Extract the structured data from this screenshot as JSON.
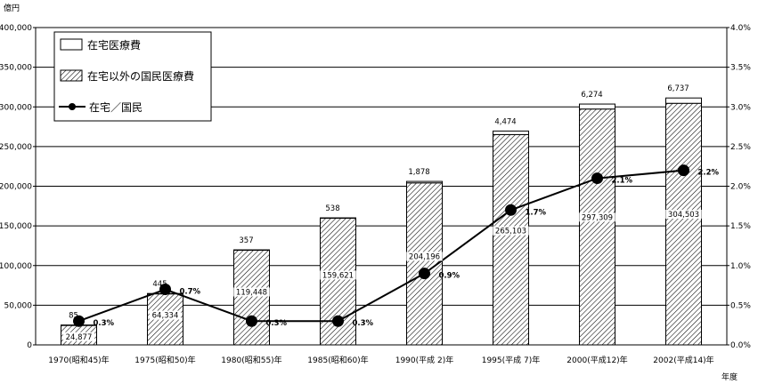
{
  "chart_data": {
    "type": "bar",
    "categories": [
      "1970(昭和45)年",
      "1975(昭和50)年",
      "1980(昭和55)年",
      "1985(昭和60)年",
      "1990(平成 2)年",
      "1995(平成 7)年",
      "2000(平成12)年",
      "2002(平成14)年"
    ],
    "series": [
      {
        "name": "在宅以外の国民医療費",
        "axis": "left",
        "kind": "stacked-bar-base",
        "pattern": "diagonal-hatch",
        "values": [
          24877,
          64334,
          119448,
          159621,
          204196,
          265103,
          297309,
          304503
        ],
        "labels": [
          "24,877",
          "64,334",
          "119,448",
          "159,621",
          "204,196",
          "265,103",
          "297,309",
          "304,503"
        ]
      },
      {
        "name": "在宅医療費",
        "axis": "left",
        "kind": "stacked-bar-top",
        "pattern": "white",
        "values": [
          85,
          445,
          357,
          538,
          1878,
          4474,
          6274,
          6737
        ],
        "labels": [
          "85",
          "445",
          "357",
          "538",
          "1,878",
          "4,474",
          "6,274",
          "6,737"
        ]
      },
      {
        "name": "在宅／国民",
        "axis": "right",
        "kind": "line",
        "values": [
          0.3,
          0.7,
          0.3,
          0.3,
          0.9,
          1.7,
          2.1,
          2.2
        ],
        "labels": [
          "0.3%",
          "0.7%",
          "0.3%",
          "0.3%",
          "0.9%",
          "1.7%",
          "2.1%",
          "2.2%"
        ]
      }
    ],
    "left_axis": {
      "unit": "億円",
      "ylim": [
        0,
        400000
      ],
      "ticks": [
        "0",
        "50,000",
        "100,000",
        "150,000",
        "200,000",
        "250,000",
        "300,000",
        "350,000",
        "400,000"
      ]
    },
    "right_axis": {
      "ylim": [
        0,
        4.0
      ],
      "ticks": [
        "0.0%",
        "0.5%",
        "1.0%",
        "1.5%",
        "2.0%",
        "2.5%",
        "3.0%",
        "3.5%",
        "4.0%"
      ]
    },
    "x_unit": "年度",
    "grid": true,
    "legend_position": "top-left",
    "colors": {
      "bar_fill": "#ffffff",
      "hatch": "#000000",
      "line": "#000000",
      "grid": "#000000"
    }
  }
}
